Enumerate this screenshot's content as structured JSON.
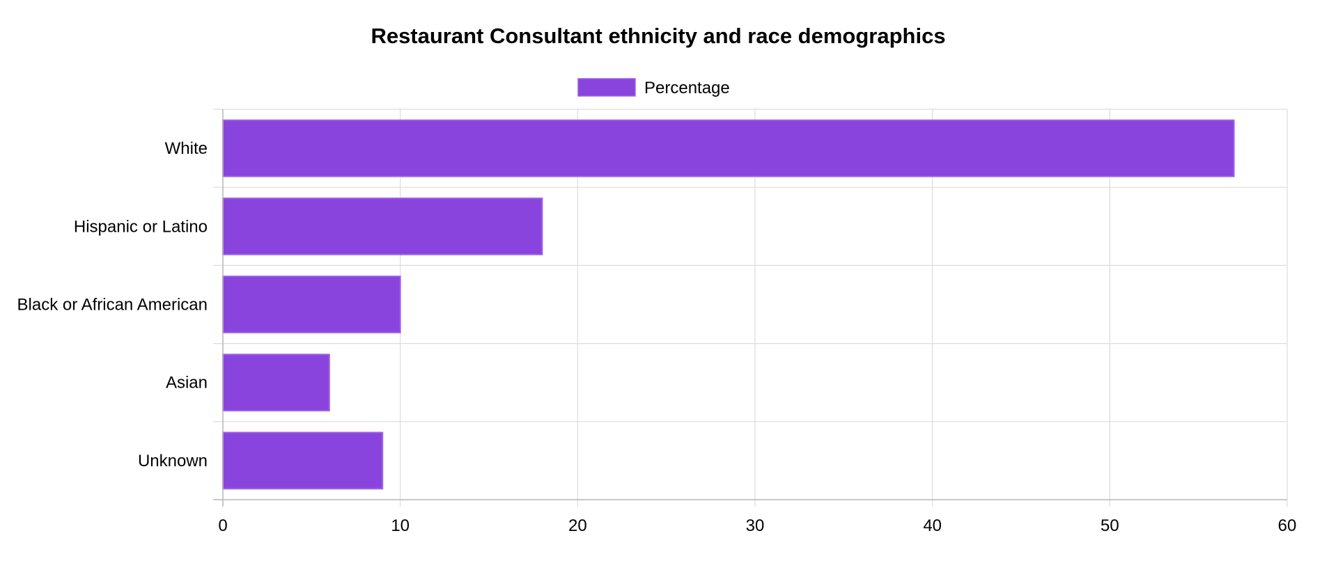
{
  "chart_data": {
    "type": "bar",
    "orientation": "horizontal",
    "title": "Restaurant Consultant ethnicity and race demographics",
    "categories": [
      "White",
      "Hispanic or Latino",
      "Black or African American",
      "Asian",
      "Unknown"
    ],
    "series": [
      {
        "name": "Percentage",
        "values": [
          57,
          18,
          10,
          6,
          9
        ]
      }
    ],
    "xlim": [
      0,
      60
    ],
    "xticks": [
      0,
      10,
      20,
      30,
      40,
      50,
      60
    ],
    "grid": true,
    "legend_position": "top",
    "colors": {
      "bar_fill": "#8944dd",
      "bar_border": "#9d62e6",
      "grid": "#dcdcdc",
      "axis": "#b8b8b8"
    }
  }
}
